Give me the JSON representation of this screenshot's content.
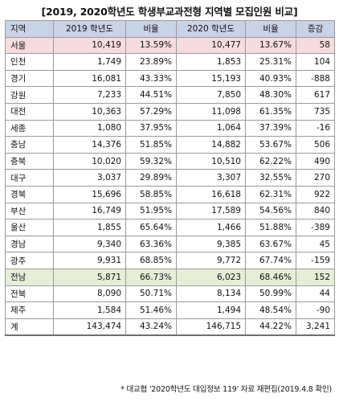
{
  "title": "[2019, 2020학년도 학생부교과전형 지역별 모집인원 비교]",
  "headers": {
    "region": "지역",
    "y2019": "2019 학년도",
    "ratio2019": "비율",
    "y2020": "2020 학년도",
    "ratio2020": "비율",
    "change": "증감"
  },
  "rows": [
    {
      "region": "서울",
      "y2019": "10,419",
      "ratio2019": "13.59%",
      "y2020": "10,477",
      "ratio2020": "13.67%",
      "change": "58",
      "highlight": "pink"
    },
    {
      "region": "인천",
      "y2019": "1,749",
      "ratio2019": "23.89%",
      "y2020": "1,853",
      "ratio2020": "25.31%",
      "change": "104"
    },
    {
      "region": "경기",
      "y2019": "16,081",
      "ratio2019": "43.33%",
      "y2020": "15,193",
      "ratio2020": "40.93%",
      "change": "-888"
    },
    {
      "region": "강원",
      "y2019": "7,233",
      "ratio2019": "44.51%",
      "y2020": "7,850",
      "ratio2020": "48.30%",
      "change": "617"
    },
    {
      "region": "대전",
      "y2019": "10,363",
      "ratio2019": "57.29%",
      "y2020": "11,098",
      "ratio2020": "61.35%",
      "change": "735"
    },
    {
      "region": "세종",
      "y2019": "1,080",
      "ratio2019": "37.95%",
      "y2020": "1,064",
      "ratio2020": "37.39%",
      "change": "-16"
    },
    {
      "region": "충남",
      "y2019": "14,376",
      "ratio2019": "51.85%",
      "y2020": "14,882",
      "ratio2020": "53.67%",
      "change": "506"
    },
    {
      "region": "충북",
      "y2019": "10,020",
      "ratio2019": "59.32%",
      "y2020": "10,510",
      "ratio2020": "62.22%",
      "change": "490"
    },
    {
      "region": "대구",
      "y2019": "3,037",
      "ratio2019": "29.89%",
      "y2020": "3,307",
      "ratio2020": "32.55%",
      "change": "270"
    },
    {
      "region": "경북",
      "y2019": "15,696",
      "ratio2019": "58.85%",
      "y2020": "16,618",
      "ratio2020": "62.31%",
      "change": "922"
    },
    {
      "region": "부산",
      "y2019": "16,749",
      "ratio2019": "51.95%",
      "y2020": "17,589",
      "ratio2020": "54.56%",
      "change": "840"
    },
    {
      "region": "울산",
      "y2019": "1,855",
      "ratio2019": "65.64%",
      "y2020": "1,466",
      "ratio2020": "51.88%",
      "change": "-389"
    },
    {
      "region": "경남",
      "y2019": "9,340",
      "ratio2019": "63.36%",
      "y2020": "9,385",
      "ratio2020": "63.67%",
      "change": "45"
    },
    {
      "region": "광주",
      "y2019": "9,931",
      "ratio2019": "68.85%",
      "y2020": "9,772",
      "ratio2020": "67.74%",
      "change": "-159"
    },
    {
      "region": "전남",
      "y2019": "5,871",
      "ratio2019": "66.73%",
      "y2020": "6,023",
      "ratio2020": "68.46%",
      "change": "152",
      "highlight": "green"
    },
    {
      "region": "전북",
      "y2019": "8,090",
      "ratio2019": "50.71%",
      "y2020": "8,134",
      "ratio2020": "50.99%",
      "change": "44"
    },
    {
      "region": "제주",
      "y2019": "1,584",
      "ratio2019": "51.46%",
      "y2020": "1,494",
      "ratio2020": "48.54%",
      "change": "-90"
    },
    {
      "region": "계",
      "y2019": "143,474",
      "ratio2019": "43.24%",
      "y2020": "146,715",
      "ratio2020": "44.22%",
      "change": "3,241"
    }
  ],
  "footnote": "* 대교협 '2020학년도 대입정보 119' 자료 재편집(2019.4.8 확인)",
  "colors": {
    "header_bg": "#c9d3e6",
    "seoul_highlight": "#f6dcdc",
    "jeonnam_highlight": "#e6eed8"
  }
}
